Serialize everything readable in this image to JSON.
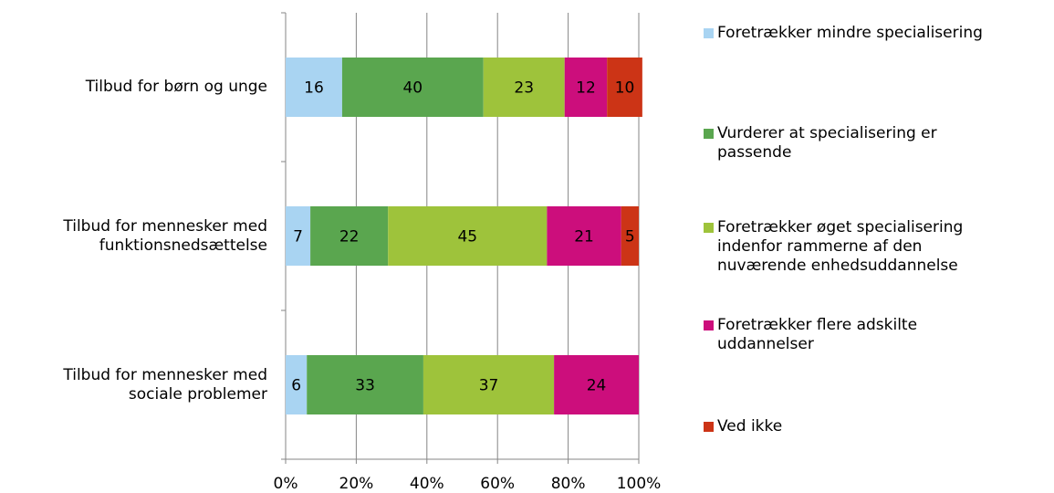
{
  "chart_data": {
    "type": "stacked_barh",
    "categories": [
      "Tilbud for børn og unge",
      "Tilbud for mennesker med\nfunktionsnedsættelse",
      "Tilbud for mennesker med\nsociale problemer"
    ],
    "series": [
      {
        "name": "Foretrækker mindre specialisering",
        "color": "#a9d4f2",
        "values": [
          16,
          7,
          6
        ]
      },
      {
        "name": "Vurderer at specialisering er\npassende",
        "color": "#5aa64f",
        "values": [
          40,
          22,
          33
        ]
      },
      {
        "name": "Foretrækker øget specialisering\nindenfor rammerne af den\nnuværende enhedsuddannelse",
        "color": "#9ec33b",
        "values": [
          23,
          45,
          37
        ]
      },
      {
        "name": "Foretrækker flere adskilte\nuddannelser",
        "color": "#cc0e7c",
        "values": [
          12,
          21,
          24
        ]
      },
      {
        "name": "Ved ikke",
        "color": "#cc3416",
        "values": [
          10,
          5,
          null
        ]
      }
    ],
    "xlim": [
      0,
      100
    ],
    "xticks": [
      {
        "value": 0,
        "label": "0%"
      },
      {
        "value": 20,
        "label": "20%"
      },
      {
        "value": 40,
        "label": "40%"
      },
      {
        "value": 60,
        "label": "60%"
      },
      {
        "value": 80,
        "label": "80%"
      },
      {
        "value": 100,
        "label": "100%"
      }
    ],
    "grid": true
  }
}
